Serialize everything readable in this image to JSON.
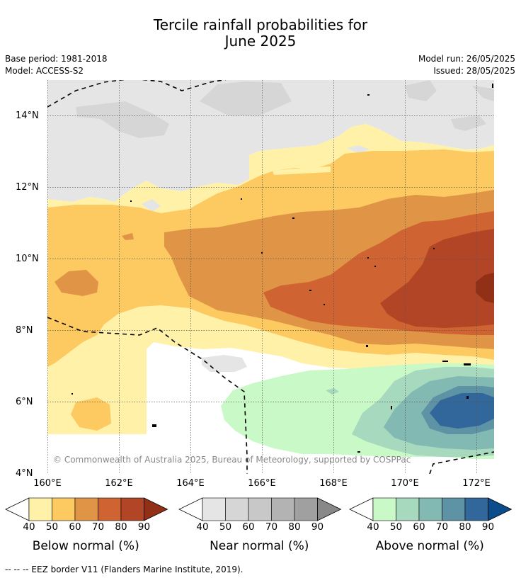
{
  "title_line1": "Tercile rainfall probabilities for",
  "title_line2": "June 2025",
  "base_period": "Base period: 1981-2018",
  "model": "Model: ACCESS-S2",
  "model_run": "Model run: 26/05/2025",
  "issued": "Issued: 28/05/2025",
  "lat_ticks": [
    "14°N",
    "12°N",
    "10°N",
    "8°N",
    "6°N",
    "4°N"
  ],
  "lon_ticks": [
    "160°E",
    "162°E",
    "164°E",
    "166°E",
    "168°E",
    "170°E",
    "172°E"
  ],
  "copyright": "© Commonwealth of Australia 2025, Bureau of Meteorology, supported by COSPPac",
  "colorbars": [
    {
      "title": "Below normal (%)",
      "ticks": [
        "40",
        "50",
        "60",
        "70",
        "80",
        "90"
      ],
      "colors": [
        "#fff1a8",
        "#fdc961",
        "#e09446",
        "#cf6331",
        "#b14525",
        "#913016"
      ]
    },
    {
      "title": "Near normal (%)",
      "ticks": [
        "40",
        "50",
        "60",
        "70",
        "80",
        "90"
      ],
      "colors": [
        "#e5e5e5",
        "#d6d6d6",
        "#c8c8c8",
        "#b3b3b3",
        "#a0a0a0",
        "#888888"
      ]
    },
    {
      "title": "Above normal (%)",
      "ticks": [
        "40",
        "50",
        "60",
        "70",
        "80",
        "90"
      ],
      "colors": [
        "#c9f9c6",
        "#a7d9be",
        "#82b9b2",
        "#5d93a4",
        "#31679a",
        "#0d4c8b"
      ]
    }
  ],
  "footnote": "--  --  -- EEZ border V11 (Flanders Marine Institute, 2019).",
  "map_extent": {
    "lon_range": [
      160,
      172.5
    ],
    "lat_range": [
      4,
      15
    ]
  }
}
